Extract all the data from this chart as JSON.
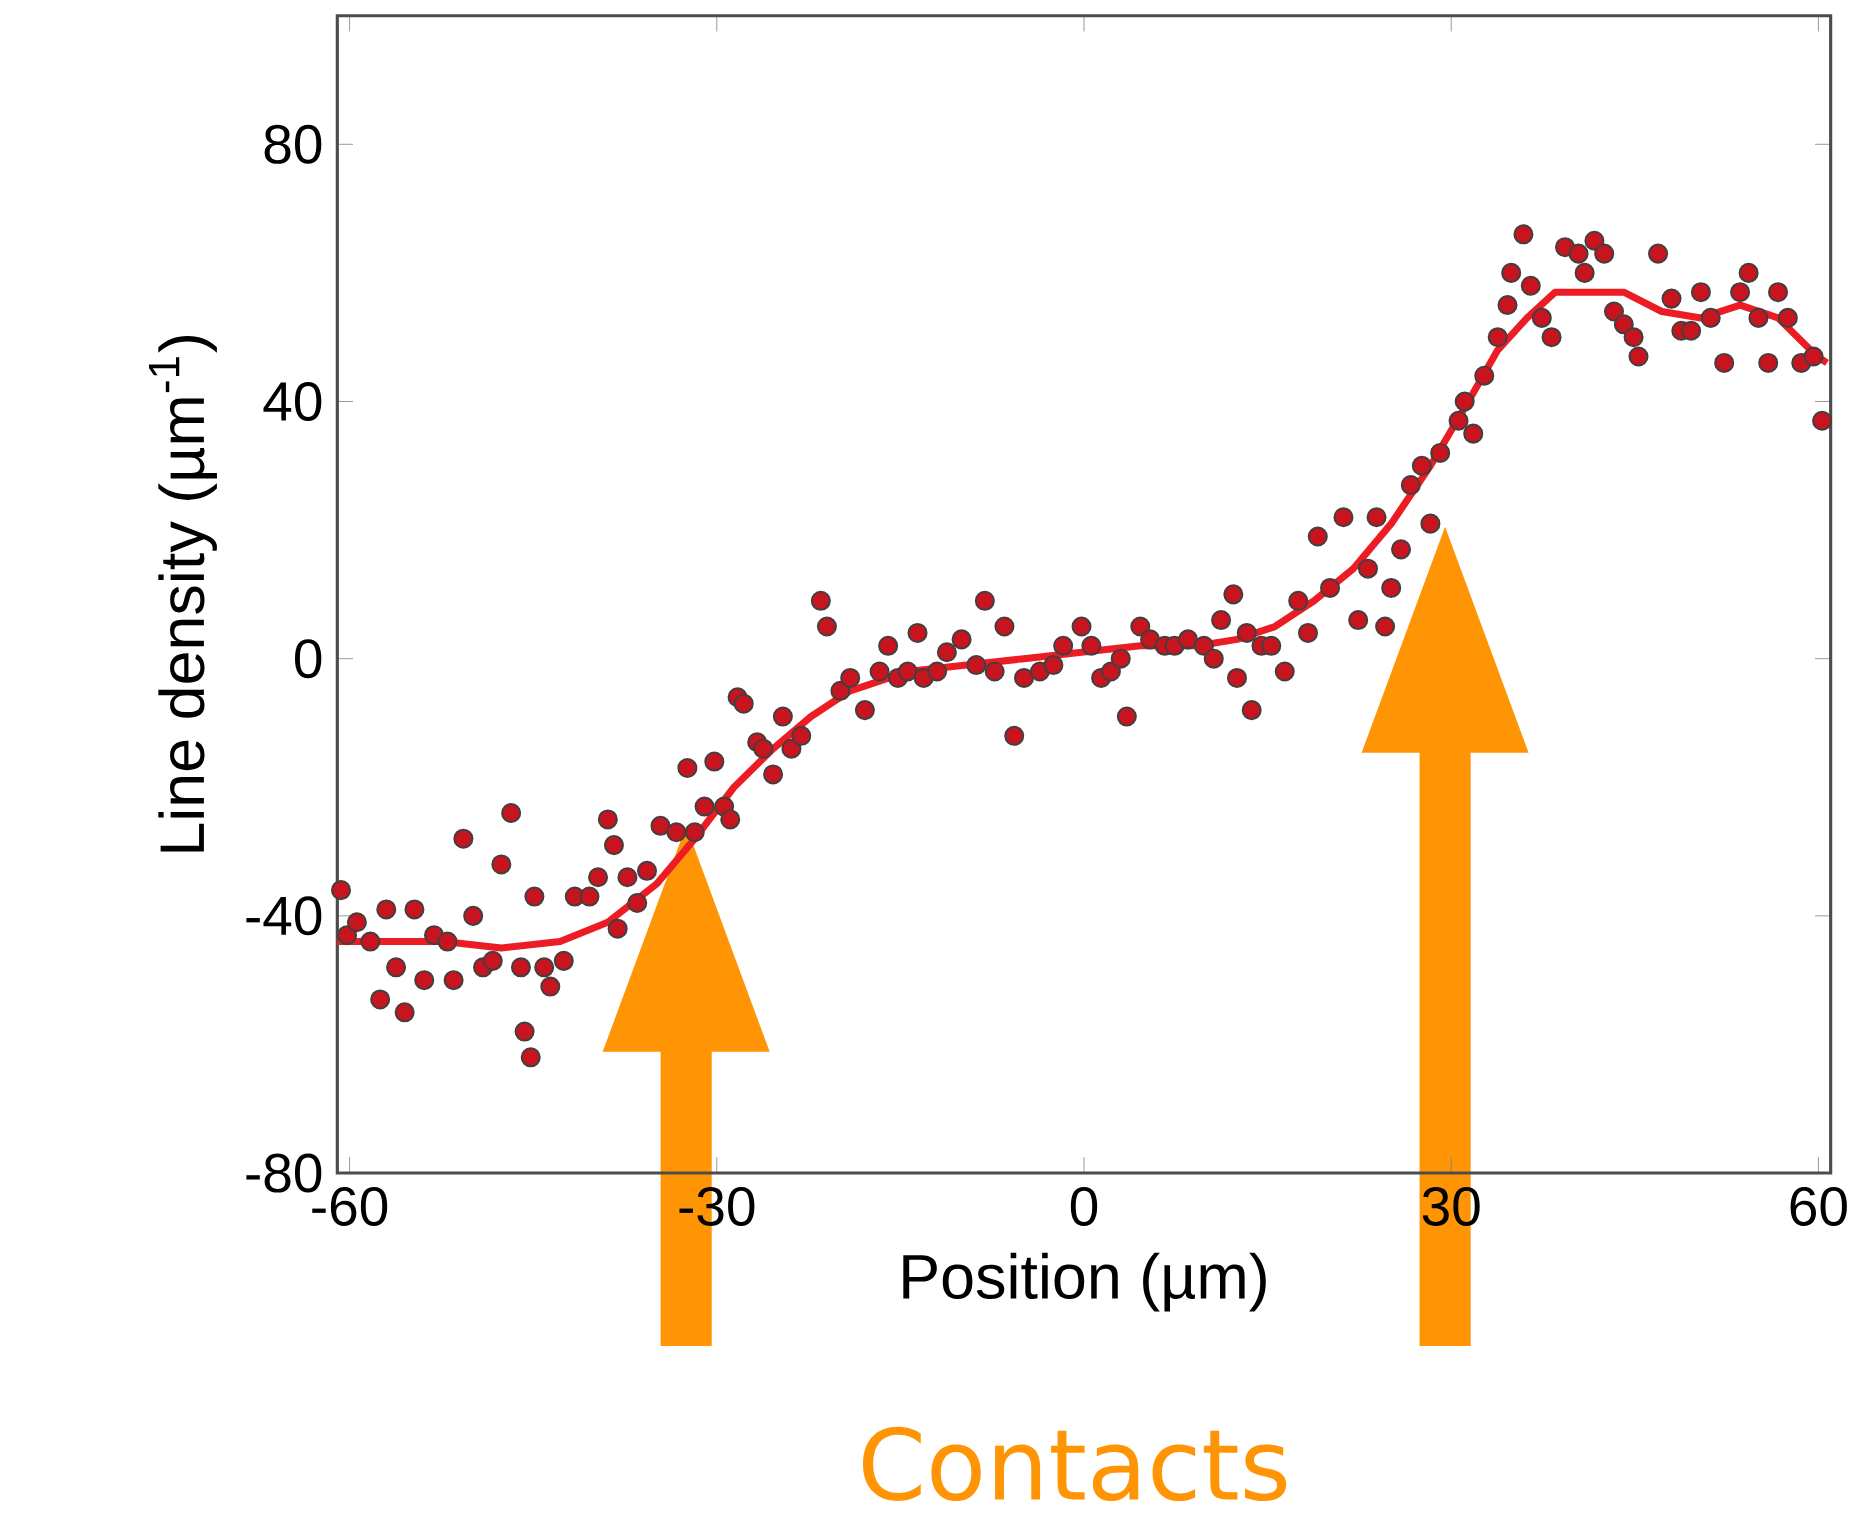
{
  "chart_data": {
    "type": "scatter",
    "xlabel": "Position (µm)",
    "ylabel": "Line density (µm$^{-1}$)",
    "xlim": [
      -61,
      61
    ],
    "ylim": [
      -80,
      100
    ],
    "xticks": [
      -60,
      -30,
      0,
      30,
      60
    ],
    "yticks": [
      -80,
      -40,
      0,
      40,
      80
    ],
    "annotations": [
      "Contacts"
    ],
    "series": [
      {
        "marker": "circle",
        "color": "#c8141e",
        "x": [
          -60.7,
          -60.2,
          -59.4,
          -58.3,
          -57.5,
          -57.0,
          -56.2,
          -55.5,
          -54.7,
          -53.9,
          -53.1,
          -52.0,
          -51.5,
          -50.7,
          -49.9,
          -49.1,
          -48.3,
          -47.6,
          -46.8,
          -46.0,
          -45.7,
          -45.2,
          -44.9,
          -44.1,
          -43.6,
          -42.5,
          -41.6,
          -40.4,
          -39.7,
          -38.9,
          -38.4,
          -38.1,
          -37.3,
          -36.5,
          -35.7,
          -34.6,
          -33.3,
          -32.4,
          -31.8,
          -31.0,
          -30.2,
          -29.4,
          -28.9,
          -28.3,
          -27.8,
          -26.7,
          -26.2,
          -25.4,
          -24.6,
          -23.9,
          -23.1,
          -21.5,
          -21.0,
          -19.9,
          -19.1,
          -17.9,
          -16.7,
          -16.0,
          -15.2,
          -14.4,
          -13.6,
          -13.1,
          -12.0,
          -11.2,
          -10.0,
          -8.8,
          -8.1,
          -7.3,
          -6.5,
          -5.7,
          -4.9,
          -3.6,
          -2.5,
          -1.7,
          -0.2,
          0.6,
          1.4,
          2.2,
          3.0,
          3.5,
          4.6,
          5.4,
          6.6,
          7.4,
          8.5,
          9.8,
          10.6,
          11.2,
          12.2,
          12.5,
          13.3,
          13.7,
          14.5,
          15.3,
          16.4,
          17.5,
          18.3,
          19.1,
          20.1,
          21.2,
          22.4,
          23.2,
          23.9,
          24.6,
          25.1,
          25.9,
          26.7,
          27.6,
          28.3,
          29.1,
          30.6,
          31.1,
          31.8,
          32.7,
          33.8,
          34.6,
          34.9,
          35.9,
          36.5,
          37.4,
          38.2,
          39.3,
          40.4,
          40.9,
          41.7,
          42.5,
          43.3,
          44.1,
          44.9,
          45.3,
          46.9,
          48.0,
          48.8,
          49.6,
          50.4,
          51.2,
          52.3,
          53.6,
          54.3,
          55.1,
          55.9,
          56.7,
          57.5,
          58.6,
          59.6,
          60.3
        ],
        "values": [
          -36,
          -43,
          -41,
          -44,
          -53,
          -39,
          -48,
          -55,
          -39,
          -50,
          -43,
          -44,
          -50,
          -28,
          -40,
          -48,
          -47,
          -32,
          -24,
          -48,
          -58,
          -62,
          -37,
          -48,
          -51,
          -47,
          -37,
          -37,
          -34,
          -25,
          -29,
          -42,
          -34,
          -38,
          -33,
          -26,
          -27,
          -17,
          -27,
          -23,
          -16,
          -23,
          -25,
          -6,
          -7,
          -13,
          -14,
          -18,
          -9,
          -14,
          -12,
          9,
          5,
          -5,
          -3,
          -8,
          -2,
          2,
          -3,
          -2,
          4,
          -3,
          -2,
          1,
          3,
          -1,
          9,
          -2,
          5,
          -12,
          -3,
          -2,
          -1,
          2,
          5,
          2,
          -3,
          -2,
          0,
          -9,
          5,
          3,
          2,
          2,
          3,
          2,
          0,
          6,
          10,
          -3,
          4,
          -8,
          2,
          2,
          -2,
          9,
          4,
          19,
          11,
          22,
          6,
          14,
          22,
          5,
          11,
          17,
          27,
          30,
          21,
          32,
          37,
          40,
          35,
          44,
          50,
          55,
          60,
          66,
          58,
          53,
          50,
          64,
          63,
          60,
          65,
          63,
          54,
          52,
          50,
          47,
          63,
          56,
          51,
          51,
          57,
          53,
          46,
          57,
          60,
          53,
          46,
          57,
          53,
          46,
          47,
          37
        ]
      },
      {
        "type": "line",
        "marker": "none",
        "color": "#ec1c24",
        "x": [
          -61.0,
          -57.0,
          -52.3,
          -47.6,
          -42.8,
          -38.9,
          -34.9,
          -31.8,
          -28.6,
          -25.4,
          -22.3,
          -19.1,
          -14.4,
          -9.6,
          -4.9,
          -0.2,
          4.6,
          9.3,
          12.5,
          15.6,
          18.8,
          22.0,
          25.1,
          28.3,
          31.4,
          33.8,
          36.2,
          38.5,
          40.9,
          44.1,
          47.2,
          50.4,
          53.6,
          56.7,
          59.9,
          60.7
        ],
        "values": [
          -44,
          -44,
          -44,
          -45,
          -44,
          -41,
          -35,
          -28,
          -20,
          -14,
          -9,
          -5,
          -2,
          -1,
          0,
          1,
          2,
          2,
          3,
          5,
          9,
          14,
          21,
          30,
          40,
          48,
          53,
          57,
          57,
          57,
          54,
          53,
          55,
          53,
          47,
          46
        ]
      }
    ]
  }
}
